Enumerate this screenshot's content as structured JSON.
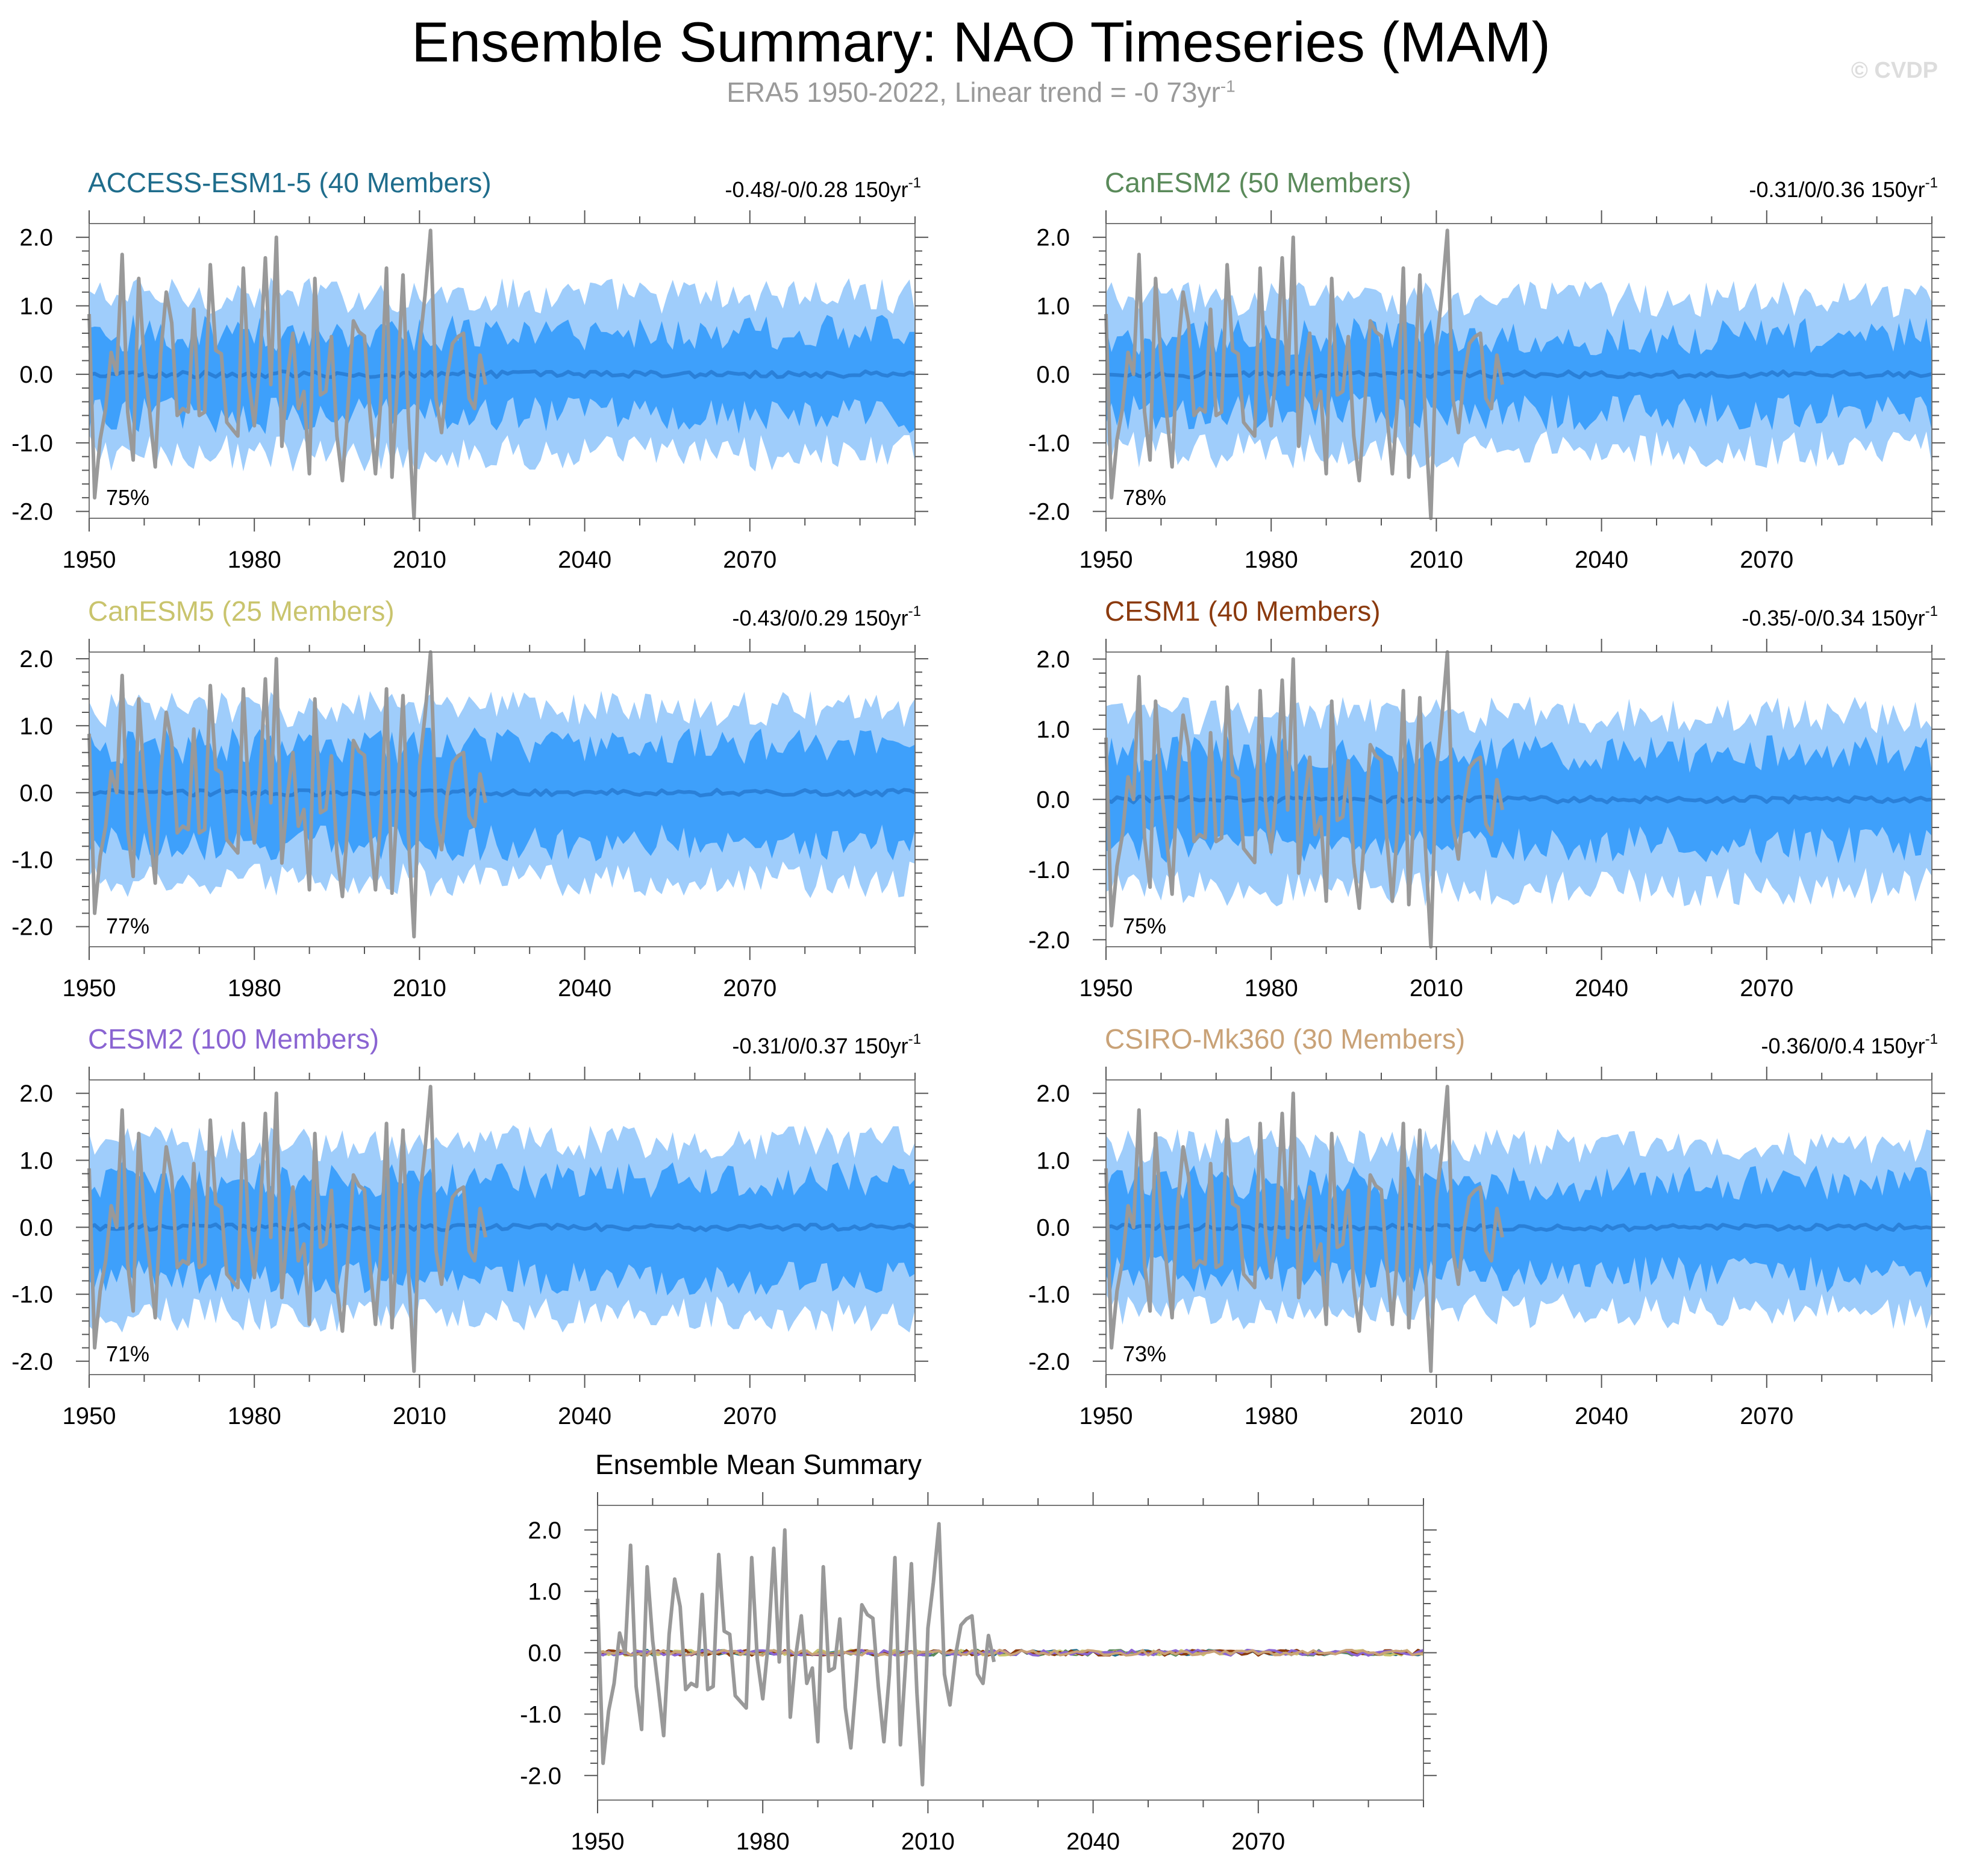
{
  "figure": {
    "title": "Ensemble Summary: NAO Timeseries (MAM)",
    "subtitle_prefix": "ERA5 1950-2022, Linear trend = -0 73yr",
    "subtitle_exp": "-1",
    "watermark": "© CVDP"
  },
  "colors": {
    "outer_band": "#9fcdfb",
    "inner_band": "#3ea0fb",
    "mean_line": "#2a80d8",
    "obs_line": "#999999"
  },
  "chart_data": [
    {
      "type": "area",
      "title": "ACCESS-ESM1-5 (40 Members)",
      "title_color": "#1f6d8c",
      "trend_label": "-0.48/-0/0.28 150yr",
      "trend_exp": "-1",
      "percent_label": "75%",
      "x_range": [
        1950,
        2100
      ],
      "ylim": [
        -2.1,
        2.2
      ],
      "x_ticks": [
        1950,
        1980,
        2010,
        2040,
        2070
      ],
      "y_ticks": [
        "2.0",
        "1.0",
        "0.0",
        "-1.0",
        "-2.0"
      ],
      "series": [
        {
          "role": "outer band",
          "x_range": [
            1950,
            2100
          ],
          "lower_mean": -1.15,
          "upper_mean": 1.15
        },
        {
          "role": "inner band",
          "x_range": [
            1950,
            2100
          ],
          "lower_mean": -0.6,
          "upper_mean": 0.6
        },
        {
          "role": "ensemble mean",
          "x_range": [
            1950,
            2100
          ],
          "mean": 0.0
        },
        {
          "role": "ERA5 observed",
          "x_range": [
            1950,
            2022
          ]
        }
      ]
    },
    {
      "type": "area",
      "title": "CanESM2 (50 Members)",
      "title_color": "#5a8a5a",
      "trend_label": "-0.31/0/0.36 150yr",
      "trend_exp": "-1",
      "percent_label": "78%",
      "x_range": [
        1950,
        2100
      ],
      "ylim": [
        -2.1,
        2.2
      ],
      "x_ticks": [
        1950,
        1980,
        2010,
        2040,
        2070
      ],
      "y_ticks": [
        "2.0",
        "1.0",
        "0.0",
        "-1.0",
        "-2.0"
      ],
      "series": [
        {
          "role": "outer band",
          "x_range": [
            1950,
            2100
          ],
          "lower_mean": -1.1,
          "upper_mean": 1.1
        },
        {
          "role": "inner band",
          "x_range": [
            1950,
            2100
          ],
          "lower_mean": -0.55,
          "upper_mean": 0.55
        },
        {
          "role": "ensemble mean",
          "x_range": [
            1950,
            2100
          ],
          "mean": 0.0
        },
        {
          "role": "ERA5 observed",
          "x_range": [
            1950,
            2022
          ]
        }
      ]
    },
    {
      "type": "area",
      "title": "CanESM5 (25 Members)",
      "title_color": "#c9c46d",
      "trend_label": "-0.43/0/0.29 150yr",
      "trend_exp": "-1",
      "percent_label": "77%",
      "x_range": [
        1950,
        2100
      ],
      "ylim": [
        -2.3,
        2.1
      ],
      "x_ticks": [
        1950,
        1980,
        2010,
        2040,
        2070
      ],
      "y_ticks": [
        "2.0",
        "1.0",
        "0.0",
        "-1.0",
        "-2.0"
      ],
      "series": [
        {
          "role": "outer band",
          "x_range": [
            1950,
            2100
          ],
          "lower_mean": -1.3,
          "upper_mean": 1.25
        },
        {
          "role": "inner band",
          "x_range": [
            1950,
            2100
          ],
          "lower_mean": -0.75,
          "upper_mean": 0.7
        },
        {
          "role": "ensemble mean",
          "x_range": [
            1950,
            2100
          ],
          "mean": 0.0
        },
        {
          "role": "ERA5 observed",
          "x_range": [
            1950,
            2022
          ]
        }
      ]
    },
    {
      "type": "area",
      "title": "CESM1 (40 Members)",
      "title_color": "#8b3a0e",
      "trend_label": "-0.35/-0/0.34 150yr",
      "trend_exp": "-1",
      "percent_label": "75%",
      "x_range": [
        1950,
        2100
      ],
      "ylim": [
        -2.1,
        2.1
      ],
      "x_ticks": [
        1950,
        1980,
        2010,
        2040,
        2070
      ],
      "y_ticks": [
        "2.0",
        "1.0",
        "0.0",
        "-1.0",
        "-2.0"
      ],
      "series": [
        {
          "role": "outer band",
          "x_range": [
            1950,
            2100
          ],
          "lower_mean": -1.25,
          "upper_mean": 1.2
        },
        {
          "role": "inner band",
          "x_range": [
            1950,
            2100
          ],
          "lower_mean": -0.65,
          "upper_mean": 0.65
        },
        {
          "role": "ensemble mean",
          "x_range": [
            1950,
            2100
          ],
          "mean": 0.0
        },
        {
          "role": "ERA5 observed",
          "x_range": [
            1950,
            2022
          ]
        }
      ]
    },
    {
      "type": "area",
      "title": "CESM2 (100 Members)",
      "title_color": "#8a64d2",
      "trend_label": "-0.31/0/0.37 150yr",
      "trend_exp": "-1",
      "percent_label": "71%",
      "x_range": [
        1950,
        2100
      ],
      "ylim": [
        -2.2,
        2.2
      ],
      "x_ticks": [
        1950,
        1980,
        2010,
        2040,
        2070
      ],
      "y_ticks": [
        "2.0",
        "1.0",
        "0.0",
        "-1.0",
        "-2.0"
      ],
      "series": [
        {
          "role": "outer band",
          "x_range": [
            1950,
            2100
          ],
          "lower_mean": -1.3,
          "upper_mean": 1.25
        },
        {
          "role": "inner band",
          "x_range": [
            1950,
            2100
          ],
          "lower_mean": -0.75,
          "upper_mean": 0.7
        },
        {
          "role": "ensemble mean",
          "x_range": [
            1950,
            2100
          ],
          "mean": 0.0
        },
        {
          "role": "ERA5 observed",
          "x_range": [
            1950,
            2022
          ]
        }
      ]
    },
    {
      "type": "area",
      "title": "CSIRO-Mk360 (30 Members)",
      "title_color": "#c9a277",
      "trend_label": "-0.36/0/0.4 150yr",
      "trend_exp": "-1",
      "percent_label": "73%",
      "x_range": [
        1950,
        2100
      ],
      "ylim": [
        -2.2,
        2.2
      ],
      "x_ticks": [
        1950,
        1980,
        2010,
        2040,
        2070
      ],
      "y_ticks": [
        "2.0",
        "1.0",
        "0.0",
        "-1.0",
        "-2.0"
      ],
      "series": [
        {
          "role": "outer band",
          "x_range": [
            1950,
            2100
          ],
          "lower_mean": -1.25,
          "upper_mean": 1.2
        },
        {
          "role": "inner band",
          "x_range": [
            1950,
            2100
          ],
          "lower_mean": -0.7,
          "upper_mean": 0.65
        },
        {
          "role": "ensemble mean",
          "x_range": [
            1950,
            2100
          ],
          "mean": 0.0
        },
        {
          "role": "ERA5 observed",
          "x_range": [
            1950,
            2022
          ]
        }
      ]
    },
    {
      "type": "line",
      "title": "Ensemble Mean Summary",
      "title_color": "#000000",
      "trend_label": "",
      "trend_exp": "",
      "percent_label": "",
      "x_range": [
        1950,
        2100
      ],
      "ylim": [
        -2.4,
        2.4
      ],
      "x_ticks": [
        1950,
        1980,
        2010,
        2040,
        2070
      ],
      "y_ticks": [
        "2.0",
        "1.0",
        "0.0",
        "-1.0",
        "-2.0"
      ],
      "series": [
        {
          "role": "ensemble means",
          "x_range": [
            1950,
            2100
          ],
          "mean": 0.0,
          "colors": [
            "#1f6d8c",
            "#5a8a5a",
            "#c9c46d",
            "#8b3a0e",
            "#8a64d2",
            "#c9a277"
          ]
        },
        {
          "role": "ERA5 observed",
          "x_range": [
            1950,
            2022
          ]
        }
      ]
    }
  ],
  "obs_nao": {
    "years": [
      1950,
      1951,
      1952,
      1953,
      1954,
      1955,
      1956,
      1957,
      1958,
      1959,
      1960,
      1961,
      1962,
      1963,
      1964,
      1965,
      1966,
      1967,
      1968,
      1969,
      1970,
      1971,
      1972,
      1973,
      1974,
      1975,
      1976,
      1977,
      1978,
      1979,
      1980,
      1981,
      1982,
      1983,
      1984,
      1985,
      1986,
      1987,
      1988,
      1989,
      1990,
      1991,
      1992,
      1993,
      1994,
      1995,
      1996,
      1997,
      1998,
      1999,
      2000,
      2001,
      2002,
      2003,
      2004,
      2005,
      2006,
      2007,
      2008,
      2009,
      2010,
      2011,
      2012,
      2013,
      2014,
      2015,
      2016,
      2017,
      2018,
      2019,
      2020,
      2021,
      2022
    ],
    "values": [
      0.88,
      -1.8,
      -0.95,
      -0.5,
      0.32,
      0.0,
      1.75,
      -0.55,
      -1.25,
      1.4,
      0.2,
      -0.55,
      -1.35,
      0.3,
      1.2,
      0.75,
      -0.6,
      -0.5,
      -0.55,
      0.95,
      -0.6,
      -0.55,
      1.6,
      0.35,
      0.3,
      -0.7,
      -0.8,
      -0.9,
      1.55,
      -0.1,
      -0.75,
      0.15,
      1.7,
      -0.15,
      2.0,
      -1.05,
      -0.05,
      0.6,
      -0.5,
      -0.25,
      -1.45,
      1.4,
      -0.3,
      -0.25,
      0.55,
      -0.9,
      -1.55,
      -0.45,
      0.78,
      0.62,
      0.56,
      -0.55,
      -1.45,
      -0.35,
      1.55,
      -1.5,
      -0.1,
      1.45,
      -0.65,
      -2.15,
      0.4,
      1.15,
      2.1,
      -0.35,
      -0.85,
      -0.05,
      0.45,
      0.55,
      0.6,
      -0.35,
      -0.5,
      0.28,
      -0.15
    ]
  }
}
